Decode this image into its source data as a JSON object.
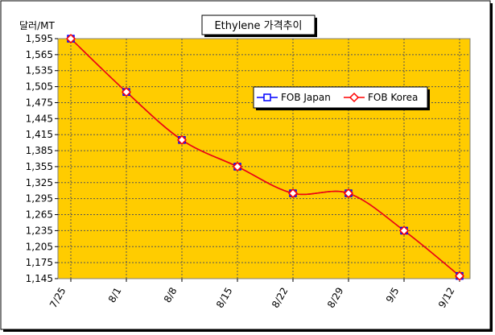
{
  "chart_data": {
    "type": "line",
    "title": "Ethylene 가격추이",
    "ylabel": "달러/MT",
    "xlabel": "",
    "categories": [
      "7/25",
      "8/1",
      "8/8",
      "8/15",
      "8/22",
      "8/29",
      "9/5",
      "9/12"
    ],
    "ylim": [
      1145,
      1595
    ],
    "yticks": [
      1145,
      1175,
      1205,
      1235,
      1265,
      1295,
      1325,
      1355,
      1385,
      1415,
      1445,
      1475,
      1505,
      1535,
      1565,
      1595
    ],
    "ytick_labels": [
      "1,145",
      "1,175",
      "1,205",
      "1,235",
      "1,265",
      "1,295",
      "1,325",
      "1,355",
      "1,385",
      "1,415",
      "1,445",
      "1,475",
      "1,505",
      "1,535",
      "1,565",
      "1,595"
    ],
    "series": [
      {
        "name": "FOB Japan",
        "values": [
          1595,
          1495,
          1405,
          1355,
          1305,
          1305,
          1235,
          1150
        ],
        "color": "#0000ff",
        "marker": "square"
      },
      {
        "name": "FOB Korea",
        "values": [
          1595,
          1495,
          1405,
          1355,
          1305,
          1305,
          1235,
          1150
        ],
        "color": "#ff0000",
        "marker": "diamond"
      }
    ],
    "plot_background": "#ffcc00",
    "grid": true,
    "legend_position": "upper-right"
  }
}
